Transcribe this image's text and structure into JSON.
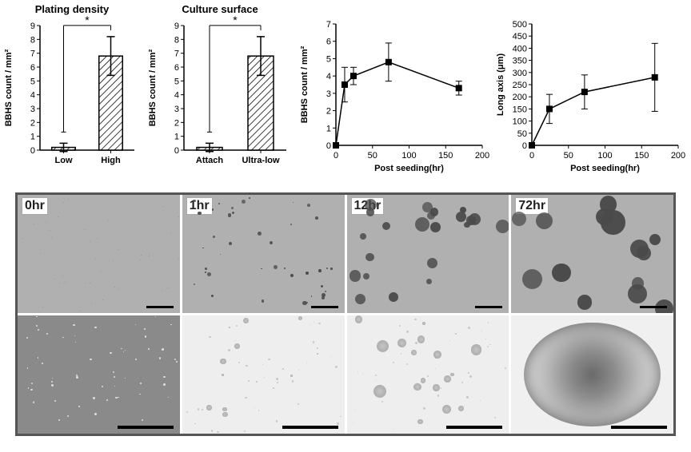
{
  "plating_density": {
    "type": "bar",
    "title": "Plating density",
    "categories": [
      "Low",
      "High"
    ],
    "values": [
      0.2,
      6.8
    ],
    "errors": [
      0.3,
      1.4
    ],
    "bar_fill": "hatched",
    "bar_stroke": "#000000",
    "bar_width": 0.5,
    "yaxis_label": "BBHS count / mm²",
    "ylim": [
      0,
      9
    ],
    "ytick_step": 1,
    "sig_label": "*",
    "background_color": "#ffffff",
    "title_fontsize": 13,
    "axis_fontsize": 11
  },
  "culture_surface": {
    "type": "bar",
    "title": "Culture surface",
    "categories": [
      "Attach",
      "Ultra-low"
    ],
    "values": [
      0.2,
      6.8
    ],
    "errors": [
      0.3,
      1.4
    ],
    "bar_fill": "hatched",
    "bar_stroke": "#000000",
    "bar_width": 0.5,
    "yaxis_label": "BBHS count / mm²",
    "ylim": [
      0,
      9
    ],
    "ytick_step": 1,
    "sig_label": "*",
    "background_color": "#ffffff",
    "title_fontsize": 13,
    "axis_fontsize": 11
  },
  "count_timecourse": {
    "type": "line",
    "xlabel": "Post seeding(hr)",
    "ylabel": "BBHS count / mm²",
    "x": [
      0,
      12,
      24,
      72,
      168
    ],
    "y": [
      0,
      3.5,
      4.0,
      4.8,
      3.3
    ],
    "yerr": [
      0,
      1.0,
      0.5,
      1.1,
      0.4
    ],
    "line_color": "#000000",
    "marker": "square",
    "marker_size": 4,
    "line_width": 1.5,
    "xlim": [
      0,
      200
    ],
    "xtick_step": 50,
    "ylim": [
      0,
      7
    ],
    "ytick_step": 1,
    "axis_fontsize": 11
  },
  "longaxis_timecourse": {
    "type": "line",
    "xlabel": "Post seeding(hr)",
    "ylabel": "Long axis (μm)",
    "x": [
      0,
      24,
      72,
      168
    ],
    "y": [
      0,
      150,
      220,
      280
    ],
    "yerr": [
      0,
      60,
      70,
      140
    ],
    "line_color": "#000000",
    "marker": "square",
    "marker_size": 4,
    "line_width": 1.5,
    "xlim": [
      0,
      200
    ],
    "xtick_step": 50,
    "ylim": [
      0,
      500
    ],
    "ytick_step": 50,
    "axis_fontsize": 11
  },
  "micrographs": {
    "border_color": "#555555",
    "timepoints": [
      "0hr",
      "1hr",
      "12hr",
      "72hr"
    ],
    "top_row_bg": "#b0b0b0",
    "bottom_row_bg": "#eeeeee",
    "colony_color": "#4a4a4a",
    "speck_color": "#dcdcdc",
    "colony_scale": [
      0,
      0.3,
      0.7,
      1.2
    ]
  }
}
